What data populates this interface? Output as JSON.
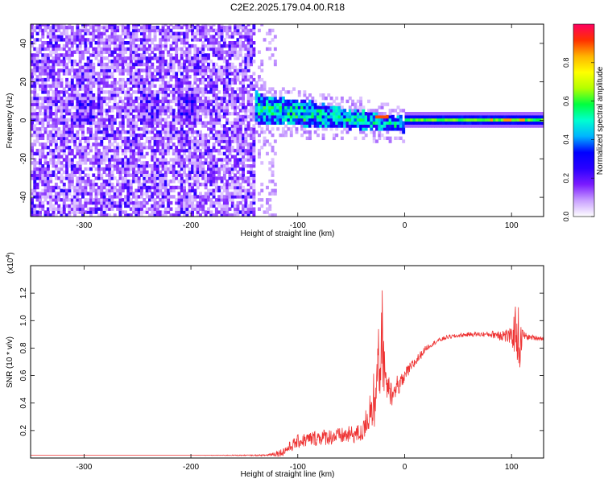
{
  "title": "C2E2.2025.179.04.00.R18",
  "chart_data": [
    {
      "type": "heatmap",
      "xlabel": "Height of straight line (km)",
      "ylabel": "Frequency (Hz)",
      "xlim": [
        -350,
        130
      ],
      "ylim": [
        -50,
        50
      ],
      "x_ticks": [
        -300,
        -200,
        -100,
        0,
        100
      ],
      "y_ticks": [
        -40,
        -20,
        0,
        20,
        40
      ],
      "colorbar": {
        "label": "Normalized spectral amplitude",
        "range": [
          0.0,
          1.0
        ],
        "ticks": [
          "0.0",
          "0.2",
          "0.4",
          "0.6",
          "0.8"
        ],
        "colors": [
          "#ffffff",
          "#c9a0ff",
          "#7a1bff",
          "#2a00ff",
          "#0000ff",
          "#00b4ff",
          "#00ffd0",
          "#00ff40",
          "#b4ff00",
          "#ffff00",
          "#ffb400",
          "#ff3000",
          "#ff0060"
        ]
      },
      "regions": [
        {
          "x_range": [
            -350,
            -140
          ],
          "freq_range": [
            -50,
            50
          ],
          "amplitude": 0.1,
          "note": "broadband noise"
        },
        {
          "x_range": [
            -145,
            0
          ],
          "freq_center": [
            6,
            -3
          ],
          "freq_halfwidth": [
            8,
            3
          ],
          "amplitude": 0.5
        },
        {
          "x_range": [
            0,
            130
          ],
          "freq_center": 0,
          "freq_halfwidth": 2,
          "amplitude": 0.65
        }
      ]
    },
    {
      "type": "line",
      "xlabel": "Height of straight line (km)",
      "ylabel": "SNR (10 * v/v)",
      "y_multiplier": "(x10",
      "y_multiplier_exp": "4",
      "y_multiplier_close": ")",
      "xlim": [
        -350,
        130
      ],
      "ylim": [
        0,
        1.4
      ],
      "x_ticks": [
        -300,
        -200,
        -100,
        0,
        100
      ],
      "y_ticks": [
        "0.2",
        "0.4",
        "0.6",
        "0.8",
        "1.0",
        "1.2"
      ],
      "series": [
        {
          "color": "#ee3333",
          "x": [
            -350,
            -200,
            -130,
            -115,
            -100,
            -80,
            -60,
            -40,
            -28,
            -25,
            -22,
            -18,
            -15,
            -10,
            -5,
            0,
            10,
            20,
            30,
            40,
            60,
            80,
            90,
            100,
            105,
            108,
            110,
            115,
            130
          ],
          "y": [
            0.02,
            0.02,
            0.02,
            0.04,
            0.12,
            0.15,
            0.16,
            0.18,
            0.35,
            0.6,
            0.8,
            0.55,
            0.5,
            0.45,
            0.52,
            0.6,
            0.7,
            0.8,
            0.85,
            0.88,
            0.9,
            0.9,
            0.9,
            0.88,
            0.95,
            0.8,
            0.9,
            0.88,
            0.87
          ],
          "noise": [
            0.0,
            0.0,
            0.005,
            0.03,
            0.05,
            0.06,
            0.06,
            0.07,
            0.12,
            0.25,
            0.3,
            0.15,
            0.1,
            0.08,
            0.06,
            0.05,
            0.04,
            0.02,
            0.015,
            0.015,
            0.015,
            0.02,
            0.05,
            0.06,
            0.25,
            0.2,
            0.04,
            0.02,
            0.015
          ]
        }
      ]
    }
  ]
}
